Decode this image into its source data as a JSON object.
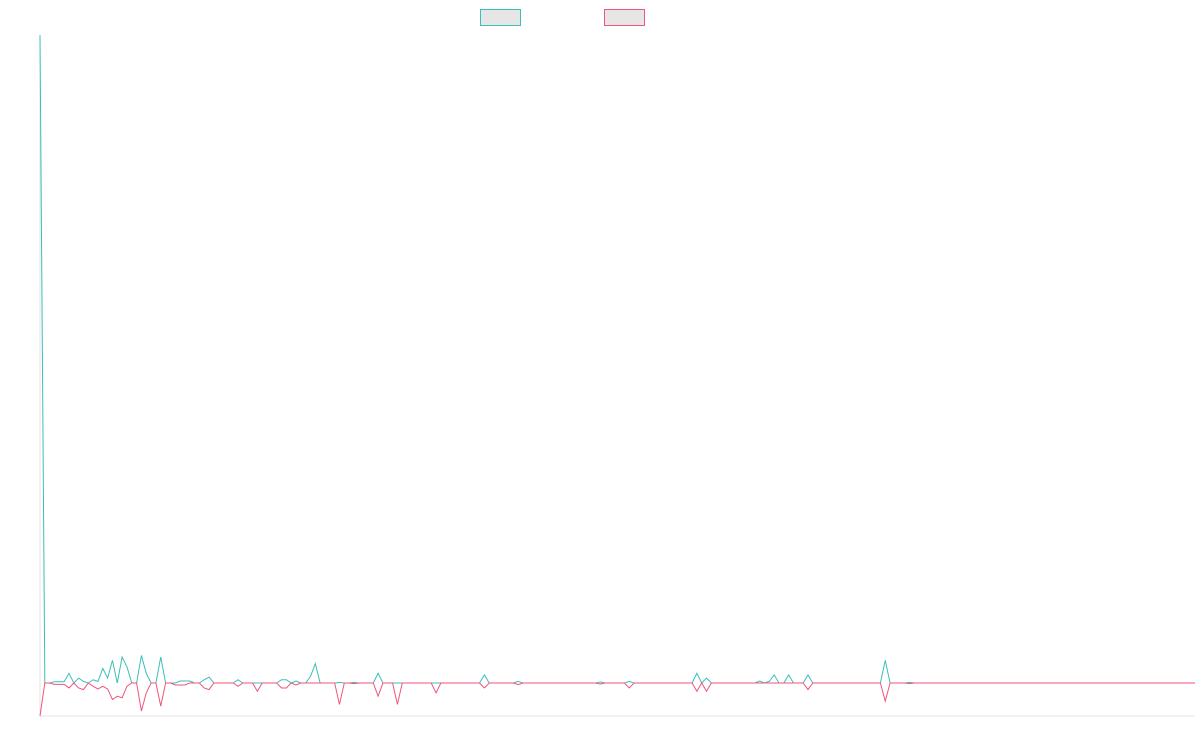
{
  "chart_data": {
    "type": "line",
    "title": "",
    "xlabel": "",
    "ylabel": "",
    "grid": false,
    "legend_placement": "top-center",
    "x_count": 240,
    "ylim": [
      -10,
      200
    ],
    "series": [
      {
        "color": "#3bbfb8",
        "legend_fill": "#e6e6e6",
        "values": [
          200,
          0,
          0,
          0.4,
          0.4,
          0.4,
          3,
          0,
          1.5,
          0.5,
          0,
          1,
          0.5,
          4.5,
          1.5,
          7,
          0,
          8,
          5,
          0,
          0,
          8.5,
          3,
          0,
          0,
          8,
          0,
          0,
          0,
          0.6,
          0.6,
          0.6,
          0,
          0,
          1,
          1.8,
          0,
          0,
          0,
          0,
          0,
          1,
          0,
          0,
          0,
          0,
          0,
          0,
          0,
          0,
          1,
          1,
          0,
          0.6,
          0,
          0,
          2,
          6,
          0,
          0,
          0,
          0,
          0.2,
          0,
          0,
          0.2,
          0,
          0,
          0,
          0,
          3,
          0,
          0,
          0,
          0,
          0,
          0,
          0,
          0,
          0,
          0,
          0,
          0,
          0,
          0,
          0,
          0,
          0,
          0,
          0,
          0,
          0,
          2.5,
          0,
          0,
          0,
          0,
          0,
          0,
          0.5,
          0,
          0,
          0,
          0,
          0,
          0,
          0,
          0,
          0,
          0,
          0,
          0,
          0,
          0,
          0,
          0,
          0.3,
          0,
          0,
          0,
          0,
          0,
          0.5,
          0,
          0,
          0,
          0,
          0,
          0,
          0,
          0,
          0,
          0,
          0,
          0,
          0,
          3,
          0,
          1.5,
          0,
          0,
          0,
          0,
          0,
          0,
          0,
          0,
          0,
          0,
          0.6,
          0,
          0.5,
          2.5,
          0,
          0,
          2.5,
          0,
          0,
          0,
          2.5,
          0,
          0,
          0,
          0,
          0,
          0,
          0,
          0,
          0,
          0,
          0,
          0,
          0,
          0,
          0,
          7,
          0,
          0,
          0,
          0,
          0.2,
          0,
          0,
          0,
          0,
          0,
          0,
          0,
          0,
          0,
          0,
          0,
          0,
          0,
          0,
          0,
          0,
          0,
          0,
          0,
          0,
          0,
          0,
          0,
          0,
          0,
          0,
          0,
          0,
          0,
          0,
          0,
          0,
          0,
          0,
          0,
          0,
          0,
          0,
          0,
          0,
          0,
          0,
          0,
          0,
          0,
          0,
          0,
          0,
          0,
          0,
          0,
          0,
          0,
          0,
          0,
          0,
          0,
          0,
          0
        ]
      },
      {
        "color": "#f0557a",
        "legend_fill": "#e6e6e6",
        "values": [
          -10,
          0,
          0,
          -0.4,
          -0.4,
          -0.4,
          -1.5,
          0,
          -1.5,
          -2,
          0,
          -1,
          -1.8,
          -1,
          -1.8,
          -5,
          -4,
          -4.5,
          -1,
          0,
          0,
          -8.5,
          -3,
          0,
          0,
          -7,
          0,
          0,
          -0.6,
          -0.6,
          -0.6,
          0,
          0,
          0,
          -1.5,
          -2,
          0,
          0,
          0,
          0,
          0,
          -1,
          0,
          0,
          0,
          -2.5,
          0,
          0,
          0,
          0,
          -1.5,
          -1.5,
          0,
          -0.6,
          0,
          0,
          0,
          0,
          0,
          0,
          0,
          0,
          -6.5,
          0,
          0,
          -0.2,
          0,
          0,
          0,
          0,
          -4,
          0,
          0,
          0,
          -6.5,
          0,
          0,
          0,
          0,
          0,
          0,
          0,
          -3,
          0,
          0,
          0,
          0,
          0,
          0,
          0,
          0,
          0,
          -1.5,
          0,
          0,
          0,
          0,
          0,
          0,
          -0.5,
          0,
          0,
          0,
          0,
          0,
          0,
          0,
          0,
          0,
          0,
          0,
          0,
          0,
          0,
          0,
          0,
          -0.3,
          0,
          0,
          0,
          0,
          0,
          -1.5,
          0,
          0,
          0,
          0,
          0,
          0,
          0,
          0,
          0,
          0,
          0,
          0,
          0,
          -2.5,
          0,
          -2.5,
          0,
          0,
          0,
          0,
          0,
          0,
          0,
          0,
          0,
          0,
          0,
          0,
          0,
          0,
          0,
          0,
          0,
          0,
          0,
          0,
          -2,
          0,
          0,
          0,
          0,
          0,
          0,
          0,
          0,
          0,
          0,
          0,
          0,
          0,
          0,
          0,
          -5.5,
          0,
          0,
          0,
          0,
          -0.2,
          0,
          0,
          0,
          0,
          0,
          0,
          0,
          0,
          0,
          0,
          0,
          0,
          0,
          0,
          0,
          0,
          0,
          0,
          0,
          0,
          0,
          0,
          0,
          0,
          0,
          0,
          0,
          0,
          0,
          0,
          0,
          0,
          0,
          0,
          0,
          0,
          0,
          0,
          0,
          0,
          0,
          0,
          0,
          0,
          0,
          0,
          0,
          0,
          0,
          0,
          0,
          0,
          0,
          0,
          0,
          0,
          0,
          0,
          0
        ]
      }
    ]
  }
}
